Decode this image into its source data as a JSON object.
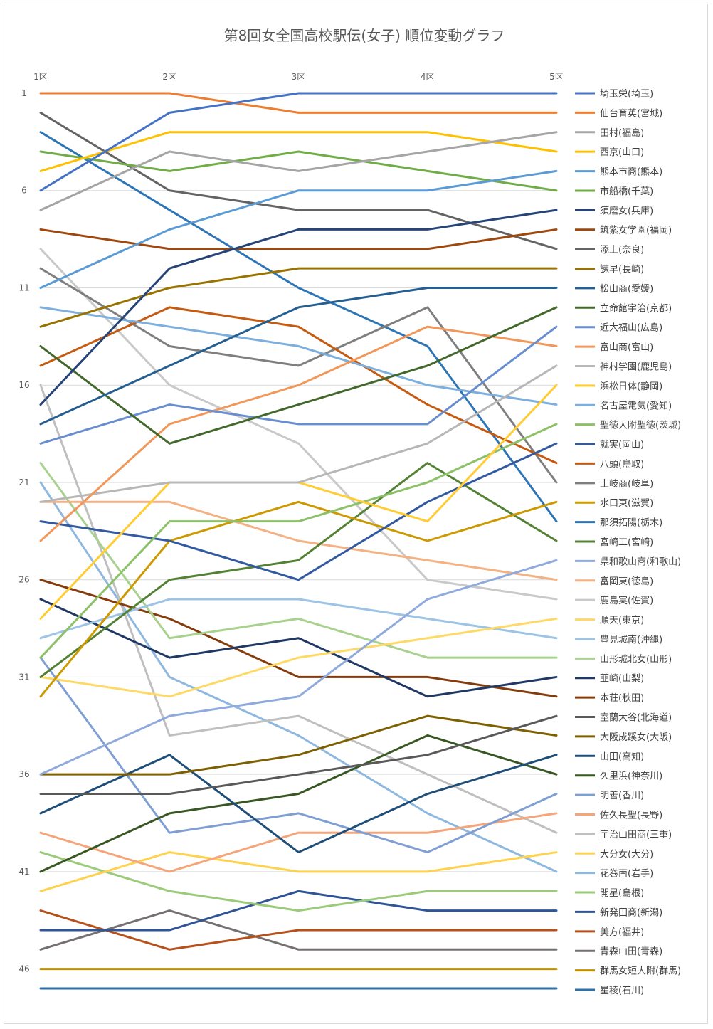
{
  "chart_data": {
    "type": "line",
    "title": "第8回女全国高校駅伝(女子) 順位変動グラフ",
    "categories": [
      "1区",
      "2区",
      "3区",
      "4区",
      "5区"
    ],
    "y_ticks": [
      "1",
      "6",
      "11",
      "16",
      "21",
      "26",
      "31",
      "36",
      "41",
      "46"
    ],
    "ylim": [
      1,
      47
    ],
    "y_reversed": true,
    "grid": "horizontal",
    "legend_position": "right",
    "series": [
      {
        "name": "埼玉栄(埼玉)",
        "color": "#4472C4",
        "values": [
          6,
          2,
          1,
          1,
          1
        ]
      },
      {
        "name": "仙台育英(宮城)",
        "color": "#ED7D31",
        "values": [
          1,
          1,
          2,
          2,
          2
        ]
      },
      {
        "name": "田村(福島)",
        "color": "#A5A5A5",
        "values": [
          7,
          4,
          5,
          4,
          3
        ]
      },
      {
        "name": "西京(山口)",
        "color": "#FFC000",
        "values": [
          5,
          3,
          3,
          3,
          4
        ]
      },
      {
        "name": "熊本市商(熊本)",
        "color": "#5B9BD5",
        "values": [
          11,
          8,
          6,
          6,
          5
        ]
      },
      {
        "name": "市船橋(千葉)",
        "color": "#70AD47",
        "values": [
          4,
          5,
          4,
          5,
          6
        ]
      },
      {
        "name": "須磨女(兵庫)",
        "color": "#264478",
        "values": [
          17,
          10,
          8,
          8,
          7
        ]
      },
      {
        "name": "筑紫女学園(福岡)",
        "color": "#9E480E",
        "values": [
          8,
          9,
          9,
          9,
          8
        ]
      },
      {
        "name": "添上(奈良)",
        "color": "#636363",
        "values": [
          2,
          6,
          7,
          7,
          9
        ]
      },
      {
        "name": "諫早(長崎)",
        "color": "#997300",
        "values": [
          13,
          11,
          10,
          10,
          10
        ]
      },
      {
        "name": "松山商(愛媛)",
        "color": "#255E91",
        "values": [
          18,
          15,
          12,
          11,
          11
        ]
      },
      {
        "name": "立命館宇治(京都)",
        "color": "#43682B",
        "values": [
          14,
          19,
          17,
          15,
          12
        ]
      },
      {
        "name": "近大福山(広島)",
        "color": "#698ED0",
        "values": [
          19,
          17,
          18,
          18,
          13
        ]
      },
      {
        "name": "富山商(富山)",
        "color": "#F1975A",
        "values": [
          24,
          18,
          16,
          13,
          14
        ]
      },
      {
        "name": "神村学園(鹿児島)",
        "color": "#B7B7B7",
        "values": [
          22,
          21,
          21,
          19,
          15
        ]
      },
      {
        "name": "浜松日体(静岡)",
        "color": "#FFCD33",
        "values": [
          28,
          21,
          21,
          23,
          16
        ]
      },
      {
        "name": "名古屋電気(愛知)",
        "color": "#7CAFDD",
        "values": [
          12,
          13,
          14,
          16,
          17
        ]
      },
      {
        "name": "聖徳大附聖徳(茨城)",
        "color": "#8CC168",
        "values": [
          30,
          23,
          23,
          21,
          18
        ]
      },
      {
        "name": "就実(岡山)",
        "color": "#335AA1",
        "values": [
          23,
          24,
          26,
          22,
          19
        ]
      },
      {
        "name": "八頭(鳥取)",
        "color": "#C55A11",
        "values": [
          15,
          12,
          13,
          17,
          20
        ]
      },
      {
        "name": "土岐商(岐阜)",
        "color": "#7F7F7F",
        "values": [
          10,
          14,
          15,
          12,
          21
        ]
      },
      {
        "name": "水口東(滋賀)",
        "color": "#CC9900",
        "values": [
          32,
          24,
          22,
          24,
          22
        ]
      },
      {
        "name": "那須拓陽(栃木)",
        "color": "#2E75B6",
        "values": [
          3,
          7,
          11,
          14,
          23
        ]
      },
      {
        "name": "宮崎工(宮崎)",
        "color": "#548235",
        "values": [
          31,
          26,
          25,
          20,
          24
        ]
      },
      {
        "name": "県和歌山商(和歌山)",
        "color": "#8FAADC",
        "values": [
          36,
          33,
          32,
          27,
          25
        ]
      },
      {
        "name": "富岡東(徳島)",
        "color": "#F4B183",
        "values": [
          22,
          22,
          24,
          25,
          26
        ]
      },
      {
        "name": "鹿島実(佐賀)",
        "color": "#C9C9C9",
        "values": [
          9,
          16,
          19,
          26,
          27
        ]
      },
      {
        "name": "順天(東京)",
        "color": "#FFD966",
        "values": [
          31,
          32,
          30,
          29,
          28
        ]
      },
      {
        "name": "豊見城南(沖縄)",
        "color": "#9DC3E6",
        "values": [
          29,
          27,
          27,
          28,
          29
        ]
      },
      {
        "name": "山形城北女(山形)",
        "color": "#A9D18E",
        "values": [
          20,
          29,
          28,
          30,
          30
        ]
      },
      {
        "name": "韮崎(山梨)",
        "color": "#203864",
        "values": [
          27,
          30,
          29,
          32,
          31
        ]
      },
      {
        "name": "本荘(秋田)",
        "color": "#843C0C",
        "values": [
          26,
          28,
          31,
          31,
          32
        ]
      },
      {
        "name": "室蘭大谷(北海道)",
        "color": "#595959",
        "values": [
          37,
          37,
          36,
          35,
          33
        ]
      },
      {
        "name": "大阪成蹊女(大阪)",
        "color": "#7F6000",
        "values": [
          36,
          36,
          35,
          33,
          34
        ]
      },
      {
        "name": "山田(高知)",
        "color": "#1F4E79",
        "values": [
          38,
          35,
          40,
          37,
          35
        ]
      },
      {
        "name": "久里浜(神奈川)",
        "color": "#385723",
        "values": [
          41,
          38,
          37,
          34,
          36
        ]
      },
      {
        "name": "明善(香川)",
        "color": "#7F9FD4",
        "values": [
          30,
          39,
          38,
          40,
          37
        ]
      },
      {
        "name": "佐久長聖(長野)",
        "color": "#F4A67A",
        "values": [
          39,
          41,
          39,
          39,
          38
        ]
      },
      {
        "name": "宇治山田商(三重)",
        "color": "#BFBFBF",
        "values": [
          16,
          34,
          33,
          36,
          39
        ]
      },
      {
        "name": "大分女(大分)",
        "color": "#FFD24D",
        "values": [
          42,
          40,
          41,
          41,
          40
        ]
      },
      {
        "name": "花巻南(岩手)",
        "color": "#8EB8E0",
        "values": [
          21,
          31,
          34,
          38,
          41
        ]
      },
      {
        "name": "開星(島根)",
        "color": "#9BCB7A",
        "values": [
          40,
          42,
          43,
          42,
          42
        ]
      },
      {
        "name": "新発田商(新潟)",
        "color": "#2F5597",
        "values": [
          44,
          44,
          42,
          43,
          43
        ]
      },
      {
        "name": "美方(福井)",
        "color": "#B7511B",
        "values": [
          43,
          45,
          44,
          44,
          44
        ]
      },
      {
        "name": "青森山田(青森)",
        "color": "#767171",
        "values": [
          45,
          43,
          45,
          45,
          45
        ]
      },
      {
        "name": "群馬女短大附(群馬)",
        "color": "#BF9000",
        "values": [
          46,
          46,
          46,
          46,
          46
        ]
      },
      {
        "name": "星稜(石川)",
        "color": "#2E6FA7",
        "values": [
          47,
          47,
          47,
          47,
          47
        ]
      }
    ]
  }
}
